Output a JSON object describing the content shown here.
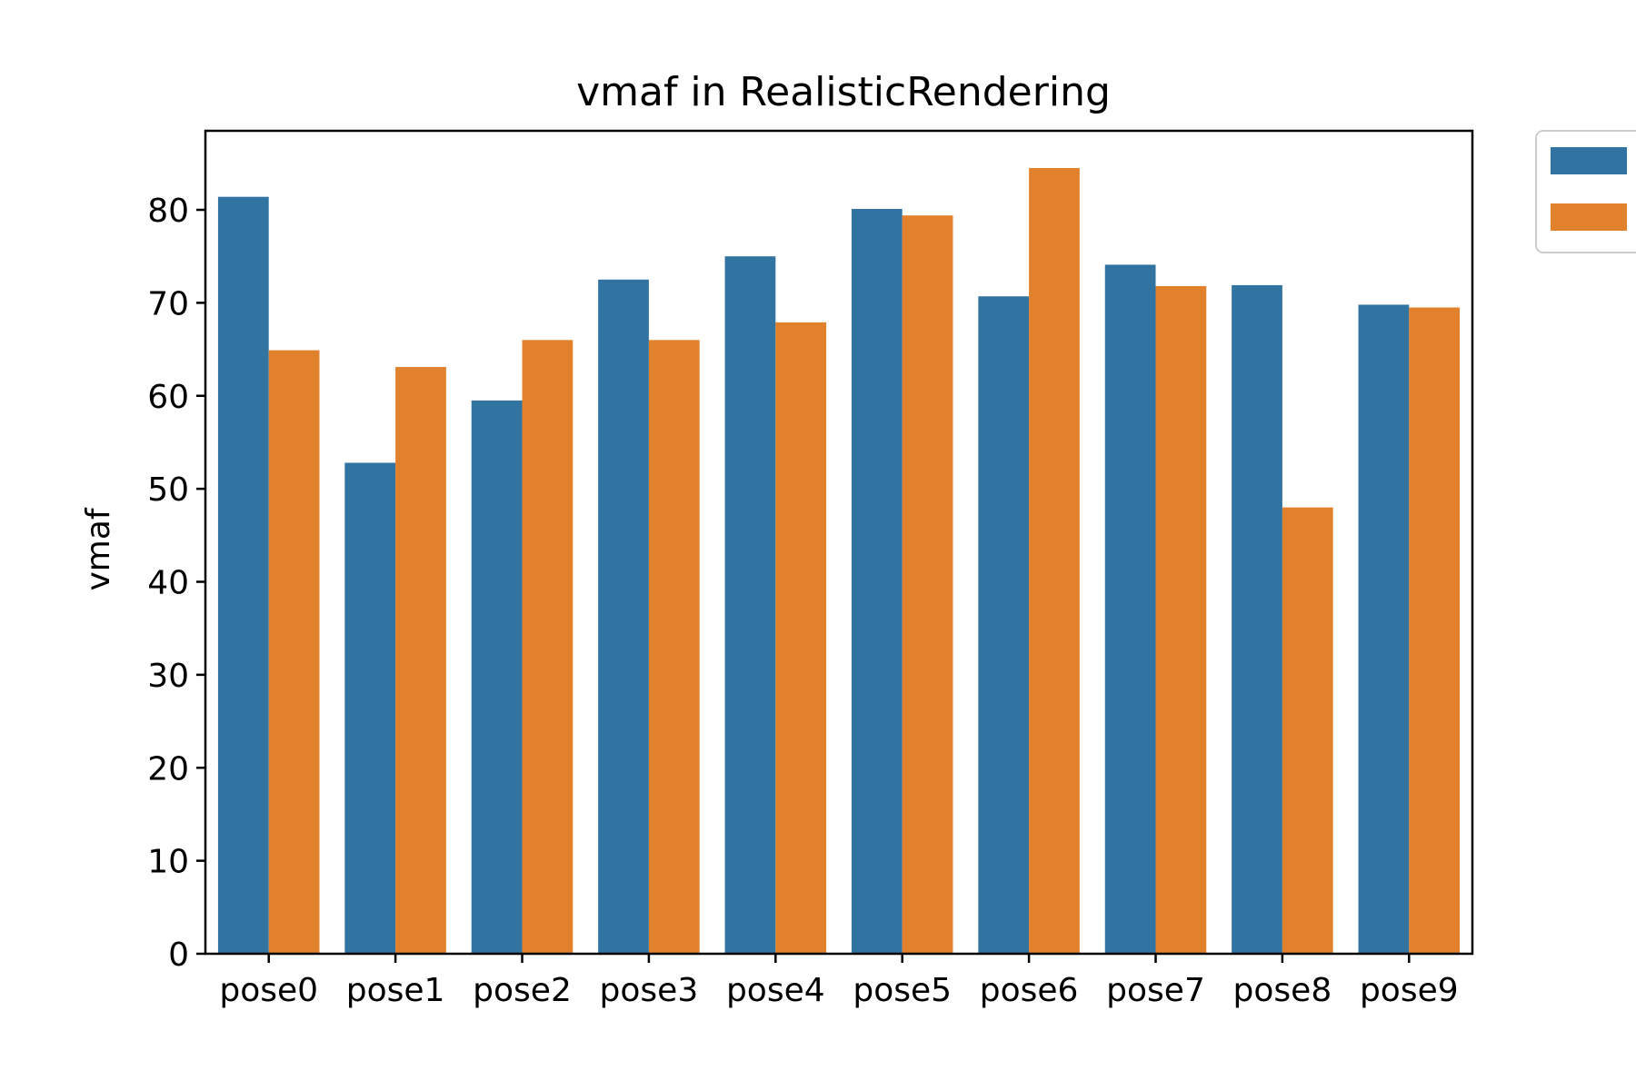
{
  "chart_data": {
    "type": "bar",
    "title": "vmaf in RealisticRendering",
    "xlabel": "",
    "ylabel": "vmaf",
    "ylim": [
      0,
      88.5
    ],
    "yticks": [
      0,
      10,
      20,
      30,
      40,
      50,
      60,
      70,
      80
    ],
    "categories": [
      "pose0",
      "pose1",
      "pose2",
      "pose3",
      "pose4",
      "pose5",
      "pose6",
      "pose7",
      "pose8",
      "pose9"
    ],
    "series": [
      {
        "color": "#3274a1",
        "values": [
          81.4,
          52.8,
          59.5,
          72.5,
          75.0,
          80.1,
          70.7,
          74.1,
          71.9,
          69.8
        ]
      },
      {
        "color": "#e1812c",
        "values": [
          64.9,
          63.1,
          66.0,
          66.0,
          67.9,
          79.4,
          84.5,
          71.8,
          48.0,
          69.5
        ]
      }
    ],
    "legend": {
      "position": "upper-right-outside",
      "entries": [
        "",
        ""
      ]
    },
    "grid": false
  }
}
